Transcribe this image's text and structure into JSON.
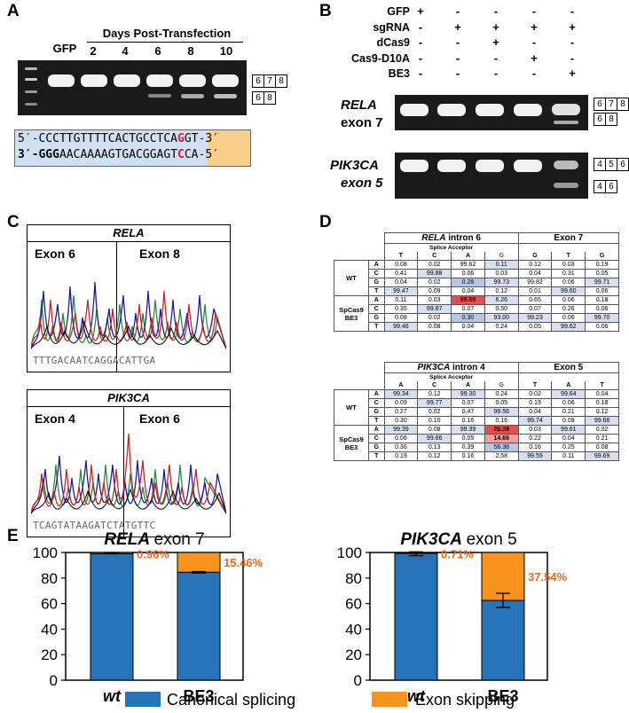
{
  "panels": {
    "A": "A",
    "B": "B",
    "C": "C",
    "D": "D",
    "E": "E"
  },
  "panelA": {
    "gfp": "GFP",
    "days_header": "Days Post-Transfection",
    "days": [
      "2",
      "4",
      "6",
      "8",
      "10"
    ],
    "size_top": [
      "6",
      "7",
      "8"
    ],
    "size_bottom": [
      "6",
      "8"
    ],
    "seq1_prefix": "5′-CCCTTGTTTTCACTGCCTCA",
    "seq1_red": "G",
    "seq1_suffix": "GT-3′",
    "seq2_prefix_bold": "3′-GGG",
    "seq2_mid": "AACAAAAGTGACGGAGT",
    "seq2_red": "C",
    "seq2_suffix": "CA-5′"
  },
  "panelB": {
    "rows": [
      {
        "label": "GFP",
        "marks": [
          "+",
          "-",
          "-",
          "-",
          "-"
        ]
      },
      {
        "label": "sgRNA",
        "marks": [
          "-",
          "+",
          "+",
          "+",
          "+"
        ]
      },
      {
        "label": "dCas9",
        "marks": [
          "-",
          "-",
          "+",
          "-",
          "-"
        ]
      },
      {
        "label": "Cas9-D10A",
        "marks": [
          "-",
          "-",
          "-",
          "+",
          "-"
        ]
      },
      {
        "label": "BE3",
        "marks": [
          "-",
          "-",
          "-",
          "-",
          "+"
        ]
      }
    ],
    "gel1_gene": "RELA",
    "gel1_exon": "exon 7",
    "gel1_sizes_top": [
      "6",
      "7",
      "8"
    ],
    "gel1_sizes_bottom": [
      "6",
      "8"
    ],
    "gel2_gene": "PIK3CA",
    "gel2_exon": "exon 5",
    "gel2_sizes_top": [
      "4",
      "5",
      "6"
    ],
    "gel2_sizes_bottom": [
      "4",
      "6"
    ]
  },
  "panelC": {
    "top_title": "RELA",
    "top_left": "Exon 6",
    "top_right": "Exon 8",
    "top_seq": "TTTGACAATCAGGACATTGA",
    "bottom_title": "PIK3CA",
    "bottom_left": "Exon 4",
    "bottom_right": "Exon 6",
    "bottom_seq": "TCAGTATAAGATCTATGTTC"
  },
  "panelD": {
    "t1": {
      "intron": "RELA intron 6",
      "exon": "Exon 7",
      "splice": "Splice Acceptor",
      "cols": [
        "T",
        "C",
        "A",
        "G",
        "G",
        "T",
        "G"
      ],
      "groups": [
        {
          "name": "WT",
          "rows": [
            [
              "A",
              "0.08",
              "0.02",
              "99.62",
              "0.11",
              "0.12",
              "0.03",
              "0.19"
            ],
            [
              "C",
              "0.41",
              "99.88",
              "0.06",
              "0.03",
              "0.04",
              "0.31",
              "0.05"
            ],
            [
              "G",
              "0.04",
              "0.02",
              "0.28",
              "99.73",
              "99.82",
              "0.06",
              "99.71"
            ],
            [
              "T",
              "99.47",
              "0.09",
              "0.04",
              "0.12",
              "0.01",
              "99.60",
              "0.06"
            ]
          ]
        },
        {
          "name": "SpCas9 BE3",
          "rows": [
            [
              "A",
              "0.11",
              "0.03",
              "99.59",
              "6.26",
              "0.65",
              "0.06",
              "0.18"
            ],
            [
              "C",
              "0.35",
              "99.87",
              "0.07",
              "0.50",
              "0.07",
              "0.26",
              "0.06"
            ],
            [
              "G",
              "0.08",
              "0.02",
              "0.30",
              "93.00",
              "99.23",
              "0.06",
              "99.70"
            ],
            [
              "T",
              "99.46",
              "0.08",
              "0.04",
              "0.24",
              "0.05",
              "99.62",
              "0.06"
            ]
          ]
        }
      ]
    },
    "t2": {
      "intron": "PIK3CA intron 4",
      "exon": "Exon 5",
      "splice": "Splice Acceptor",
      "cols": [
        "A",
        "C",
        "A",
        "G",
        "T",
        "A",
        "T"
      ],
      "groups": [
        {
          "name": "WT",
          "rows": [
            [
              "A",
              "99.34",
              "0.12",
              "99.30",
              "0.24",
              "0.02",
              "99.64",
              "0.04"
            ],
            [
              "C",
              "0.09",
              "99.77",
              "0.07",
              "0.05",
              "0.19",
              "0.06",
              "0.18"
            ],
            [
              "G",
              "0.27",
              "0.02",
              "0.47",
              "99.56",
              "0.04",
              "0.21",
              "0.12"
            ],
            [
              "T",
              "0.30",
              "0.10",
              "0.16",
              "0.16",
              "99.74",
              "0.09",
              "99.66"
            ]
          ]
        },
        {
          "name": "SpCas9 BE3",
          "rows": [
            [
              "A",
              "99.39",
              "0.08",
              "99.39",
              "26.38",
              "0.03",
              "99.61",
              "0.02"
            ],
            [
              "C",
              "0.06",
              "99.66",
              "0.05",
              "14.66",
              "0.22",
              "0.04",
              "0.21"
            ],
            [
              "G",
              "0.36",
              "0.13",
              "0.39",
              "56.38",
              "0.16",
              "0.25",
              "0.08"
            ],
            [
              "T",
              "0.19",
              "0.12",
              "0.16",
              "2.58",
              "99.59",
              "0.11",
              "99.69"
            ]
          ]
        }
      ]
    }
  },
  "chart_data": [
    {
      "type": "bar",
      "title": "RELA exon 7",
      "categories": [
        "wt",
        "BE3"
      ],
      "series": [
        {
          "name": "Canonical splicing",
          "values": [
            99.04,
            84.54
          ]
        },
        {
          "name": "Exon skipping",
          "values": [
            0.96,
            15.46
          ]
        }
      ],
      "data_labels": [
        "0.96%",
        "15.46%"
      ],
      "yticks": [
        "0",
        "20",
        "40",
        "60",
        "80",
        "100"
      ],
      "ylim": [
        0,
        100
      ]
    },
    {
      "type": "bar",
      "title": "PIK3CA exon 5",
      "categories": [
        "wt",
        "BE3"
      ],
      "series": [
        {
          "name": "Canonical splicing",
          "values": [
            99.29,
            62.46
          ]
        },
        {
          "name": "Exon skipping",
          "values": [
            0.71,
            37.54
          ]
        }
      ],
      "data_labels": [
        "0.71%",
        "37.54%"
      ],
      "yticks": [
        "0",
        "20",
        "40",
        "60",
        "80",
        "100"
      ],
      "ylim": [
        0,
        100
      ]
    }
  ],
  "legend": {
    "canonical": "Canonical splicing",
    "skipping": "Exon skipping"
  },
  "colors": {
    "canonical": "#2673b8",
    "skipping": "#f7931e",
    "label": "#e66a1f",
    "seqblue": "#cfe0f3",
    "seqorange": "#f8cf8a",
    "red": "#d2232a"
  }
}
